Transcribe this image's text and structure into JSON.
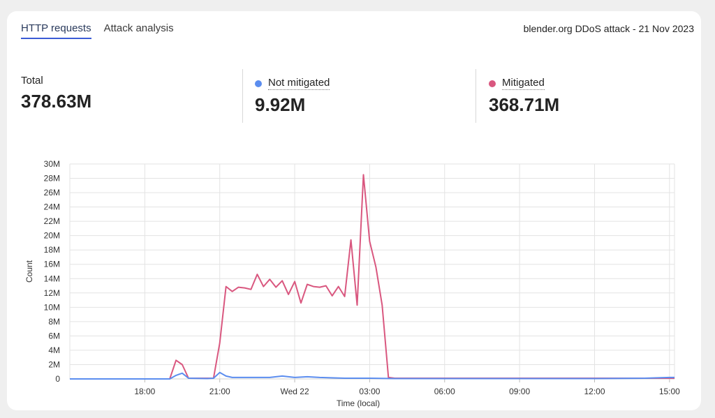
{
  "tabs": [
    {
      "label": "HTTP requests",
      "active": true
    },
    {
      "label": "Attack analysis",
      "active": false
    }
  ],
  "header": {
    "title": "blender.org DDoS attack - 21 Nov 2023"
  },
  "stats": {
    "total": {
      "label": "Total",
      "value": "378.63M"
    },
    "not_mitigated": {
      "label": "Not mitigated",
      "value": "9.92M",
      "color": "#5b8def"
    },
    "mitigated": {
      "label": "Mitigated",
      "value": "368.71M",
      "color": "#d9577f"
    }
  },
  "chart_data": {
    "type": "line",
    "xlabel": "Time (local)",
    "ylabel": "Count",
    "ylim": [
      0,
      30
    ],
    "y_ticks": [
      0,
      2,
      4,
      6,
      8,
      10,
      12,
      14,
      16,
      18,
      20,
      22,
      24,
      26,
      28,
      30
    ],
    "y_tick_labels": [
      "0",
      "2M",
      "4M",
      "6M",
      "8M",
      "10M",
      "12M",
      "14M",
      "16M",
      "18M",
      "20M",
      "22M",
      "24M",
      "26M",
      "28M",
      "30M"
    ],
    "x_range_hours": [
      15.0,
      39.2
    ],
    "x_ticks": [
      18,
      21,
      24,
      27,
      30,
      33,
      36,
      39
    ],
    "x_tick_labels": [
      "18:00",
      "21:00",
      "Wed 22",
      "03:00",
      "06:00",
      "09:00",
      "12:00",
      "15:00"
    ],
    "grid": true,
    "series": [
      {
        "name": "Mitigated",
        "color": "#d9577f",
        "x": [
          15.0,
          18.0,
          19.0,
          19.25,
          19.5,
          19.75,
          20.5,
          20.75,
          21.0,
          21.25,
          21.5,
          21.75,
          22.0,
          22.25,
          22.5,
          22.75,
          23.0,
          23.25,
          23.5,
          23.75,
          24.0,
          24.25,
          24.5,
          24.75,
          25.0,
          25.25,
          25.5,
          25.75,
          26.0,
          26.25,
          26.5,
          26.75,
          27.0,
          27.25,
          27.5,
          27.75,
          28.0,
          30.0,
          33.0,
          36.0,
          39.0,
          39.2
        ],
        "y": [
          0,
          0,
          0,
          2.6,
          2.0,
          0.1,
          0.1,
          0.1,
          5.0,
          12.9,
          12.2,
          12.8,
          12.7,
          12.5,
          14.6,
          12.9,
          13.9,
          12.8,
          13.7,
          11.8,
          13.6,
          10.6,
          13.2,
          12.9,
          12.8,
          13.0,
          11.6,
          12.9,
          11.5,
          19.4,
          10.3,
          28.5,
          19.2,
          15.6,
          10.3,
          0.2,
          0.1,
          0.1,
          0.1,
          0.1,
          0.1,
          0.1
        ]
      },
      {
        "name": "Not mitigated",
        "color": "#5b8def",
        "x": [
          15.0,
          18.0,
          19.0,
          19.25,
          19.5,
          19.75,
          20.5,
          20.75,
          21.0,
          21.25,
          21.5,
          22.0,
          23.0,
          23.5,
          24.0,
          24.5,
          25.0,
          26.0,
          27.0,
          28.0,
          30.0,
          33.0,
          36.0,
          38.0,
          39.0,
          39.2
        ],
        "y": [
          0,
          0,
          0,
          0.5,
          0.8,
          0.1,
          0.05,
          0.1,
          0.9,
          0.4,
          0.2,
          0.2,
          0.2,
          0.4,
          0.2,
          0.3,
          0.2,
          0.1,
          0.1,
          0.05,
          0.05,
          0.05,
          0.05,
          0.1,
          0.2,
          0.2
        ]
      }
    ]
  }
}
